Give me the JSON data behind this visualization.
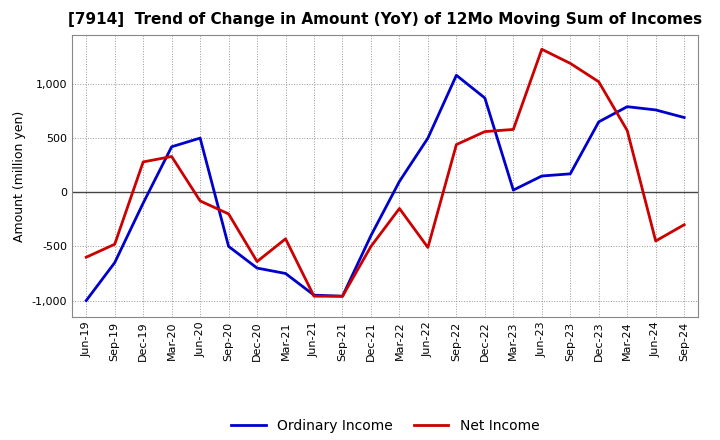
{
  "title": "[7914]  Trend of Change in Amount (YoY) of 12Mo Moving Sum of Incomes",
  "ylabel": "Amount (million yen)",
  "x_labels": [
    "Jun-19",
    "Sep-19",
    "Dec-19",
    "Mar-20",
    "Jun-20",
    "Sep-20",
    "Dec-20",
    "Mar-21",
    "Jun-21",
    "Sep-21",
    "Dec-21",
    "Mar-22",
    "Jun-22",
    "Sep-22",
    "Dec-22",
    "Mar-23",
    "Jun-23",
    "Sep-23",
    "Dec-23",
    "Mar-24",
    "Jun-24",
    "Sep-24"
  ],
  "ordinary_income": [
    -1000,
    -650,
    -100,
    420,
    500,
    -500,
    -700,
    -750,
    -950,
    -960,
    -400,
    100,
    500,
    1080,
    870,
    20,
    150,
    170,
    650,
    790,
    760,
    690
  ],
  "net_income": [
    -600,
    -480,
    280,
    330,
    -80,
    -200,
    -640,
    -430,
    -960,
    -960,
    -500,
    -150,
    -510,
    440,
    560,
    580,
    1320,
    1190,
    1020,
    570,
    -450,
    -300
  ],
  "ordinary_income_color": "#0000cc",
  "net_income_color": "#cc0000",
  "ylim": [
    -1150,
    1450
  ],
  "yticks": [
    -1000,
    -500,
    0,
    500,
    1000
  ],
  "background_color": "#FFFFFF",
  "grid_color": "#999999",
  "legend_labels": [
    "Ordinary Income",
    "Net Income"
  ],
  "title_fontsize": 11,
  "ylabel_fontsize": 9,
  "tick_fontsize": 8
}
